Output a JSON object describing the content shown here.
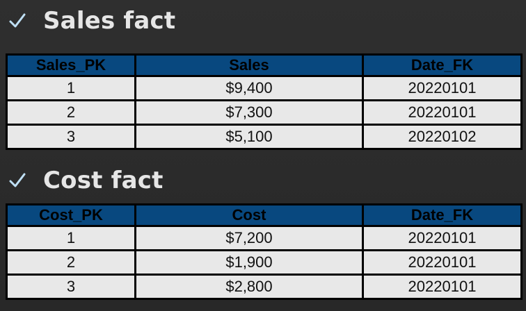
{
  "sections": [
    {
      "title": "Sales fact",
      "columns": [
        "Sales_PK",
        "Sales",
        "Date_FK"
      ],
      "rows": [
        [
          "1",
          "$9,400",
          "20220101"
        ],
        [
          "2",
          "$7,300",
          "20220101"
        ],
        [
          "3",
          "$5,100",
          "20220102"
        ]
      ]
    },
    {
      "title": "Cost fact",
      "columns": [
        "Cost_PK",
        "Cost",
        "Date_FK"
      ],
      "rows": [
        [
          "1",
          "$7,200",
          "20220101"
        ],
        [
          "2",
          "$1,900",
          "20220101"
        ],
        [
          "3",
          "$2,800",
          "20220101"
        ]
      ]
    }
  ],
  "icons": {
    "bullet": "check-mark-icon"
  },
  "colors": {
    "background": "#2b2b2b",
    "header_fill": "#08487f",
    "cell_fill": "#e8e8e8",
    "check": "#bfe0f5"
  }
}
